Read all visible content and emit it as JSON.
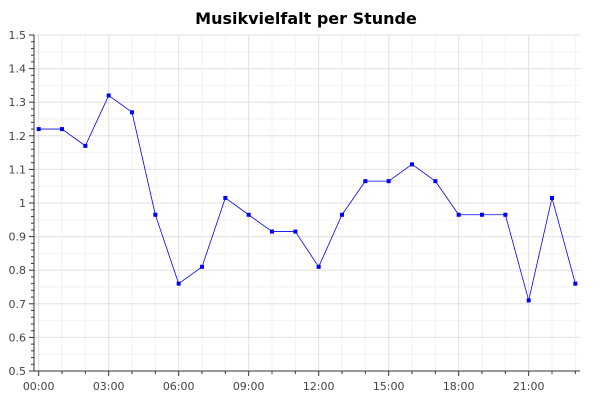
{
  "chart_data": {
    "type": "line",
    "title": "Musikvielfalt per Stunde",
    "xlabel": "",
    "ylabel": "",
    "x": [
      0,
      1,
      2,
      3,
      4,
      5,
      6,
      7,
      8,
      9,
      10,
      11,
      12,
      13,
      14,
      15,
      16,
      17,
      18,
      19,
      20,
      21,
      22,
      23
    ],
    "x_tick_labels": [
      {
        "x": 0,
        "label": "00:00"
      },
      {
        "x": 3,
        "label": "03:00"
      },
      {
        "x": 6,
        "label": "06:00"
      },
      {
        "x": 9,
        "label": "09:00"
      },
      {
        "x": 12,
        "label": "12:00"
      },
      {
        "x": 15,
        "label": "15:00"
      },
      {
        "x": 18,
        "label": "18:00"
      },
      {
        "x": 21,
        "label": "21:00"
      }
    ],
    "y_ticks": [
      "0.5",
      "0.6",
      "0.7",
      "0.8",
      "0.9",
      "1",
      "1.1",
      "1.2",
      "1.3",
      "1.4",
      "1.5"
    ],
    "series": [
      {
        "values": [
          1.22,
          1.22,
          1.17,
          1.32,
          1.27,
          0.965,
          0.76,
          0.81,
          1.015,
          0.965,
          0.915,
          0.915,
          0.81,
          0.965,
          1.065,
          1.065,
          1.115,
          1.065,
          0.965,
          0.965,
          0.965,
          0.71,
          1.015,
          0.76
        ],
        "color": "#0000ff"
      }
    ],
    "xlim": [
      -0.2,
      23.2
    ],
    "ylim": [
      0.5,
      1.5
    ],
    "grid": true,
    "colors": {
      "grid": "#e6e6e6",
      "axis": "#333333",
      "line": "#0000ff"
    }
  }
}
